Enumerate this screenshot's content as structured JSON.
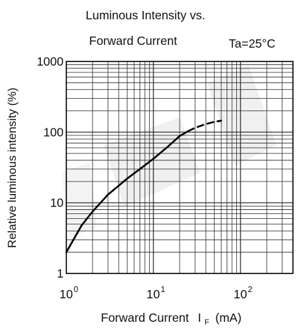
{
  "chart_data": {
    "type": "line",
    "title_line1": "Luminous Intensity vs.",
    "title_line2": "Forward Current",
    "condition": "Ta=25°C",
    "ylabel": "Relative luminous intensity (%)",
    "xlabel_main": "Forward Current",
    "xlabel_symbol": "I",
    "xlabel_subscript": "F",
    "xlabel_unit": "(mA)",
    "x_scale": "log",
    "y_scale": "log",
    "xlim": [
      1,
      400
    ],
    "ylim": [
      1,
      1000
    ],
    "grid": true,
    "x_ticks": [
      {
        "value": 1,
        "base": "10",
        "exp": "0"
      },
      {
        "value": 10,
        "base": "10",
        "exp": "1"
      },
      {
        "value": 100,
        "base": "10",
        "exp": "2"
      }
    ],
    "y_ticks": [
      {
        "value": 1,
        "label": "1"
      },
      {
        "value": 10,
        "label": "10"
      },
      {
        "value": 100,
        "label": "100"
      },
      {
        "value": 1000,
        "label": "1000"
      }
    ],
    "series": [
      {
        "style": "solid",
        "x": [
          1,
          1.5,
          2,
          3,
          5,
          7,
          10,
          15,
          20,
          25
        ],
        "y": [
          2,
          4.8,
          7.5,
          13,
          22,
          30,
          42,
          64,
          88,
          103
        ]
      },
      {
        "style": "dashed",
        "x": [
          25,
          30,
          40,
          50,
          60
        ],
        "y": [
          103,
          115,
          130,
          140,
          145
        ]
      }
    ],
    "colors": {
      "line": "#000000",
      "grid": "#222222",
      "watermark": "#e6e6e6"
    }
  }
}
